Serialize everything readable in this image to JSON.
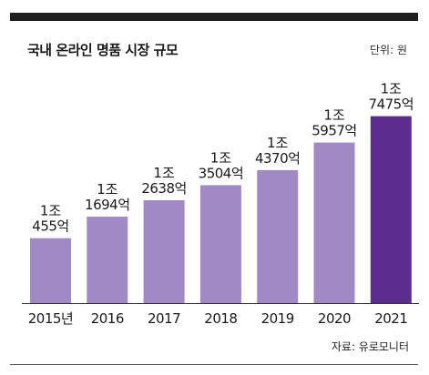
{
  "header": {
    "title": "국내 온라인 명품 시장 규모",
    "unit": "단위: 원"
  },
  "footer": {
    "source": "자료: 유로모니터"
  },
  "colors": {
    "bar": "#a189c5",
    "highlight_bar": "#5b2c8e",
    "axis": "#333333",
    "top_bar": "#1f1f1f"
  },
  "chart_data": {
    "type": "bar",
    "categories": [
      "2015년",
      "2016",
      "2017",
      "2018",
      "2019",
      "2020",
      "2021"
    ],
    "values": [
      10455,
      11694,
      12638,
      13504,
      14370,
      15957,
      17475
    ],
    "value_unit": "억원",
    "data_labels": [
      [
        "1조",
        "455억"
      ],
      [
        "1조",
        "1694억"
      ],
      [
        "1조",
        "2638억"
      ],
      [
        "1조",
        "3504억"
      ],
      [
        "1조",
        "4370억"
      ],
      [
        "1조",
        "5957억"
      ],
      [
        "1조",
        "7475억"
      ]
    ],
    "highlight_index": 6,
    "title": "국내 온라인 명품 시장 규모",
    "xlabel": "",
    "ylabel": "",
    "grid": false,
    "legend": "none"
  }
}
